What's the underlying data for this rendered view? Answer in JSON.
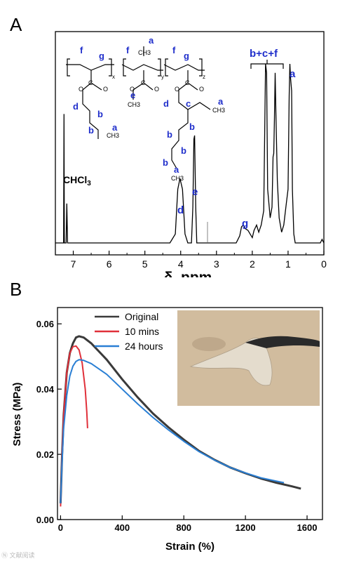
{
  "panel_a_label": "A",
  "panel_b_label": "B",
  "watermark": "Ⓝ 文献阅读",
  "colors": {
    "axis": "#000000",
    "nmr_line": "#000000",
    "structure_label": "#1f2ecb",
    "original": "#3a3a3a",
    "ten_mins": "#e0303a",
    "twenty_four_hours": "#2a7fd4",
    "photo_bg": "#cbb497"
  },
  "chart_data": [
    {
      "type": "line",
      "xlabel": "δ, ppm",
      "xlim": [
        7.5,
        0
      ],
      "xticks": [
        "7",
        "6",
        "5",
        "4",
        "3",
        "2",
        "1",
        "0"
      ],
      "xtick_values": [
        7,
        6,
        5,
        4,
        3,
        2,
        1,
        0
      ],
      "annotations": {
        "solvent": "CHCl3",
        "solvent_base": "CHCl",
        "solvent_sub": "3",
        "peak_d": "d",
        "peak_e": "e",
        "peak_g": "g",
        "peak_group": "b+c+f",
        "peak_a": "a"
      },
      "structure_labels": [
        "f",
        "g",
        "f",
        "a",
        "f",
        "g",
        "a",
        "e",
        "d",
        "b",
        "b",
        "a",
        "d",
        "c",
        "a",
        "b",
        "b",
        "b",
        "b",
        "a",
        "x",
        "y",
        "z",
        "CH3",
        "O",
        "C"
      ],
      "spectrum": [
        [
          7.5,
          0.0
        ],
        [
          7.3,
          0.0
        ],
        [
          7.27,
          0.0
        ],
        [
          7.26,
          0.72
        ],
        [
          7.25,
          0.0
        ],
        [
          7.2,
          0.0
        ],
        [
          7.18,
          0.22
        ],
        [
          7.16,
          0.0
        ],
        [
          6.0,
          0.0
        ],
        [
          4.3,
          0.0
        ],
        [
          4.15,
          0.05
        ],
        [
          4.08,
          0.3
        ],
        [
          4.02,
          0.36
        ],
        [
          3.95,
          0.3
        ],
        [
          3.88,
          0.05
        ],
        [
          3.8,
          0.0
        ],
        [
          3.7,
          0.0
        ],
        [
          3.66,
          0.2
        ],
        [
          3.63,
          0.58
        ],
        [
          3.61,
          0.6
        ],
        [
          3.58,
          0.2
        ],
        [
          3.55,
          0.0
        ],
        [
          3.5,
          0.0
        ],
        [
          2.45,
          0.0
        ],
        [
          2.35,
          0.04
        ],
        [
          2.3,
          0.09
        ],
        [
          2.25,
          0.1
        ],
        [
          2.2,
          0.08
        ],
        [
          2.12,
          0.07
        ],
        [
          2.0,
          0.03
        ],
        [
          1.95,
          0.07
        ],
        [
          1.88,
          0.1
        ],
        [
          1.82,
          0.06
        ],
        [
          1.75,
          0.1
        ],
        [
          1.68,
          0.18
        ],
        [
          1.63,
          1.0
        ],
        [
          1.6,
          0.95
        ],
        [
          1.57,
          0.3
        ],
        [
          1.5,
          0.14
        ],
        [
          1.45,
          0.2
        ],
        [
          1.42,
          0.48
        ],
        [
          1.4,
          0.5
        ],
        [
          1.38,
          0.7
        ],
        [
          1.36,
          0.95
        ],
        [
          1.34,
          0.72
        ],
        [
          1.3,
          0.35
        ],
        [
          1.25,
          0.14
        ],
        [
          1.18,
          0.06
        ],
        [
          1.12,
          0.1
        ],
        [
          1.05,
          0.22
        ],
        [
          1.0,
          0.3
        ],
        [
          0.97,
          0.82
        ],
        [
          0.95,
          1.0
        ],
        [
          0.93,
          0.92
        ],
        [
          0.9,
          0.85
        ],
        [
          0.88,
          0.3
        ],
        [
          0.84,
          0.05
        ],
        [
          0.8,
          0.0
        ],
        [
          0.1,
          0.0
        ],
        [
          0.05,
          0.02
        ],
        [
          0.0,
          0.0
        ]
      ]
    },
    {
      "type": "line",
      "xlabel": "Strain (%)",
      "ylabel": "Stress (MPa)",
      "xlim": [
        -20,
        1700
      ],
      "ylim": [
        0,
        0.065
      ],
      "xticks": [
        "0",
        "400",
        "800",
        "1200",
        "1600"
      ],
      "xtick_values": [
        0,
        400,
        800,
        1200,
        1600
      ],
      "yticks": [
        "0.00",
        "0.02",
        "0.04",
        "0.06"
      ],
      "ytick_values": [
        0,
        0.02,
        0.04,
        0.06
      ],
      "legend_position": "top-left",
      "photo_position": "top-right",
      "series": [
        {
          "name": "Original",
          "color": "#3a3a3a",
          "x": [
            0,
            10,
            20,
            40,
            60,
            80,
            100,
            120,
            150,
            200,
            300,
            400,
            500,
            600,
            700,
            800,
            900,
            1000,
            1100,
            1200,
            1300,
            1400,
            1500,
            1560
          ],
          "y": [
            0.005,
            0.02,
            0.032,
            0.045,
            0.051,
            0.054,
            0.0558,
            0.0562,
            0.0558,
            0.054,
            0.049,
            0.043,
            0.0375,
            0.0325,
            0.0283,
            0.0245,
            0.021,
            0.0183,
            0.016,
            0.0142,
            0.0126,
            0.0113,
            0.0102,
            0.0095
          ]
        },
        {
          "name": "10 mins",
          "color": "#e0303a",
          "x": [
            0,
            10,
            20,
            40,
            60,
            80,
            100,
            120,
            140,
            160,
            170,
            175
          ],
          "y": [
            0.004,
            0.02,
            0.032,
            0.045,
            0.051,
            0.053,
            0.0532,
            0.052,
            0.048,
            0.04,
            0.033,
            0.028
          ]
        },
        {
          "name": "24 hours",
          "color": "#2a7fd4",
          "x": [
            0,
            10,
            20,
            40,
            60,
            80,
            100,
            120,
            150,
            200,
            300,
            400,
            500,
            600,
            700,
            800,
            900,
            1000,
            1100,
            1200,
            1300,
            1400,
            1450
          ],
          "y": [
            0.005,
            0.018,
            0.028,
            0.038,
            0.044,
            0.047,
            0.0485,
            0.049,
            0.0488,
            0.0478,
            0.0445,
            0.04,
            0.0355,
            0.0313,
            0.0275,
            0.024,
            0.0208,
            0.0182,
            0.016,
            0.0143,
            0.0128,
            0.0118,
            0.0113
          ]
        }
      ]
    }
  ]
}
